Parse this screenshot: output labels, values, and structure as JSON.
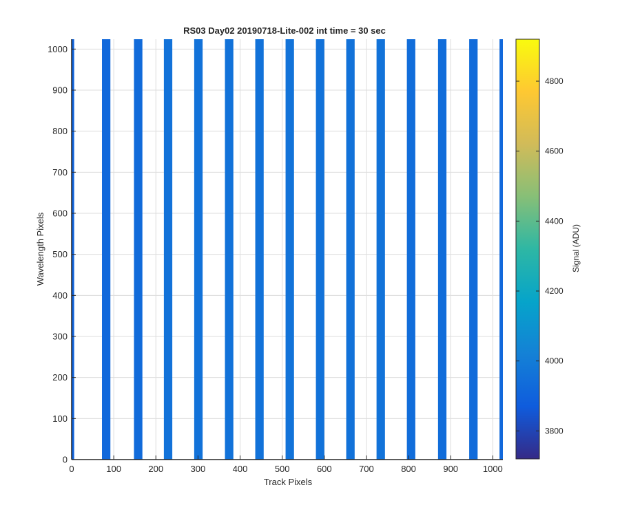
{
  "chart_data": {
    "type": "heatmap",
    "title": "RS03 Day02 20190718-Lite-002 int time = 30 sec",
    "xlabel": "Track Pixels",
    "ylabel": "Wavelength Pixels",
    "xlim": [
      0,
      1024
    ],
    "ylim": [
      0,
      1024
    ],
    "xticks": [
      0,
      100,
      200,
      300,
      400,
      500,
      600,
      700,
      800,
      900,
      1000
    ],
    "yticks": [
      0,
      100,
      200,
      300,
      400,
      500,
      600,
      700,
      800,
      900,
      1000
    ],
    "grid": true,
    "background_color": "#ffffff",
    "colorbar": {
      "label": "Signal (ADU)",
      "range": [
        3720,
        4920
      ],
      "ticks": [
        3800,
        4000,
        4200,
        4400,
        4600,
        4800
      ],
      "colormap": "parula",
      "stops": [
        "#352a87",
        "#0f5cdd",
        "#1481d6",
        "#06a4ca",
        "#2eb7a4",
        "#87bf77",
        "#d1bb59",
        "#fec832",
        "#f9fb0e"
      ]
    },
    "bands": [
      {
        "x_start": 0,
        "x_end": 6,
        "value": 3900
      },
      {
        "x_start": 72,
        "x_end": 92,
        "value": 3920
      },
      {
        "x_start": 148,
        "x_end": 168,
        "value": 3930
      },
      {
        "x_start": 219,
        "x_end": 239,
        "value": 3960
      },
      {
        "x_start": 291,
        "x_end": 311,
        "value": 3960
      },
      {
        "x_start": 364,
        "x_end": 384,
        "value": 3960
      },
      {
        "x_start": 436,
        "x_end": 456,
        "value": 3960
      },
      {
        "x_start": 508,
        "x_end": 528,
        "value": 3965
      },
      {
        "x_start": 580,
        "x_end": 600,
        "value": 3960
      },
      {
        "x_start": 652,
        "x_end": 672,
        "value": 3960
      },
      {
        "x_start": 724,
        "x_end": 744,
        "value": 3965
      },
      {
        "x_start": 796,
        "x_end": 816,
        "value": 3940
      },
      {
        "x_start": 870,
        "x_end": 890,
        "value": 3940
      },
      {
        "x_start": 944,
        "x_end": 964,
        "value": 3930
      },
      {
        "x_start": 1016,
        "x_end": 1024,
        "value": 3920
      }
    ]
  }
}
